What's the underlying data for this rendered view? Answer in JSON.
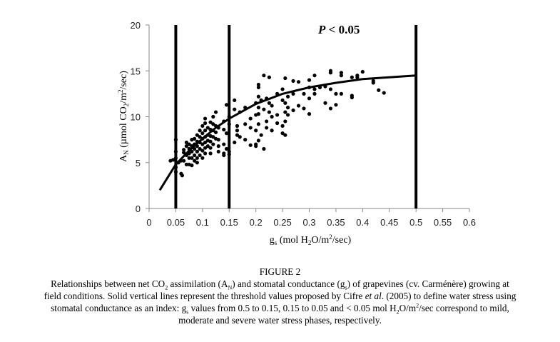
{
  "chart_data": {
    "type": "scatter",
    "title": "",
    "annotation": {
      "prefix": "P",
      "text": " < 0.05"
    },
    "xlabel": {
      "main": "g",
      "sub": "s",
      "rest1": " (mol H",
      "sub2": "2",
      "rest2": "O/m",
      "sup": "2",
      "rest3": "/sec)"
    },
    "ylabel": {
      "main": "A",
      "sub": "N",
      "rest1": " (µmol CO",
      "sub2": "2",
      "rest2": "/m",
      "sup": "2",
      "rest3": "/sec)"
    },
    "xlim": [
      0,
      0.6
    ],
    "ylim": [
      0,
      20
    ],
    "xticks": [
      "0",
      "0.05",
      "0.1",
      "0.15",
      "0.2",
      "0.25",
      "0.3",
      "0.35",
      "0.4",
      "0.45",
      "0.5",
      "0.55",
      "0.6"
    ],
    "yticks": [
      "0",
      "5",
      "10",
      "15",
      "20"
    ],
    "grid": false,
    "threshold_lines_x": [
      0.05,
      0.15,
      0.5
    ],
    "fit_curve": [
      [
        0.02,
        2.0
      ],
      [
        0.035,
        3.4
      ],
      [
        0.05,
        4.8
      ],
      [
        0.075,
        6.3
      ],
      [
        0.1,
        7.6
      ],
      [
        0.125,
        8.8
      ],
      [
        0.15,
        9.8
      ],
      [
        0.2,
        11.4
      ],
      [
        0.25,
        12.5
      ],
      [
        0.3,
        13.2
      ],
      [
        0.35,
        13.7
      ],
      [
        0.4,
        14.1
      ],
      [
        0.45,
        14.3
      ],
      [
        0.5,
        14.5
      ]
    ],
    "points": [
      [
        0.04,
        5.2
      ],
      [
        0.045,
        5.3
      ],
      [
        0.05,
        7.5
      ],
      [
        0.05,
        6.2
      ],
      [
        0.05,
        5.5
      ],
      [
        0.05,
        4.5
      ],
      [
        0.05,
        4.0
      ],
      [
        0.055,
        5.0
      ],
      [
        0.06,
        3.8
      ],
      [
        0.06,
        5.2
      ],
      [
        0.062,
        3.6
      ],
      [
        0.065,
        6.4
      ],
      [
        0.065,
        6.1
      ],
      [
        0.065,
        5.2
      ],
      [
        0.07,
        6.8
      ],
      [
        0.07,
        5.8
      ],
      [
        0.07,
        4.8
      ],
      [
        0.07,
        7.2
      ],
      [
        0.075,
        7.0
      ],
      [
        0.075,
        6.5
      ],
      [
        0.075,
        6.0
      ],
      [
        0.075,
        5.5
      ],
      [
        0.075,
        4.8
      ],
      [
        0.08,
        7.5
      ],
      [
        0.08,
        6.8
      ],
      [
        0.08,
        6.2
      ],
      [
        0.08,
        5.5
      ],
      [
        0.08,
        4.7
      ],
      [
        0.085,
        7.6
      ],
      [
        0.085,
        7.0
      ],
      [
        0.085,
        6.5
      ],
      [
        0.085,
        5.8
      ],
      [
        0.085,
        5.2
      ],
      [
        0.09,
        8.0
      ],
      [
        0.09,
        7.3
      ],
      [
        0.09,
        6.8
      ],
      [
        0.09,
        6.2
      ],
      [
        0.09,
        5.5
      ],
      [
        0.09,
        5.0
      ],
      [
        0.095,
        8.5
      ],
      [
        0.095,
        7.8
      ],
      [
        0.095,
        7.2
      ],
      [
        0.095,
        6.5
      ],
      [
        0.095,
        5.8
      ],
      [
        0.1,
        9.0
      ],
      [
        0.1,
        8.2
      ],
      [
        0.1,
        7.6
      ],
      [
        0.1,
        7.0
      ],
      [
        0.1,
        6.3
      ],
      [
        0.1,
        5.5
      ],
      [
        0.105,
        9.8
      ],
      [
        0.105,
        9.3
      ],
      [
        0.105,
        8.5
      ],
      [
        0.105,
        7.8
      ],
      [
        0.105,
        7.2
      ],
      [
        0.105,
        6.6
      ],
      [
        0.105,
        6.0
      ],
      [
        0.11,
        8.8
      ],
      [
        0.11,
        8.0
      ],
      [
        0.11,
        7.4
      ],
      [
        0.11,
        6.8
      ],
      [
        0.115,
        9.4
      ],
      [
        0.115,
        8.6
      ],
      [
        0.115,
        7.9
      ],
      [
        0.115,
        7.3
      ],
      [
        0.115,
        6.6
      ],
      [
        0.115,
        6.0
      ],
      [
        0.12,
        10.0
      ],
      [
        0.12,
        9.2
      ],
      [
        0.12,
        8.5
      ],
      [
        0.12,
        7.8
      ],
      [
        0.12,
        7.0
      ],
      [
        0.125,
        10.5
      ],
      [
        0.125,
        9.0
      ],
      [
        0.125,
        8.3
      ],
      [
        0.125,
        7.6
      ],
      [
        0.13,
        8.8
      ],
      [
        0.13,
        7.5
      ],
      [
        0.13,
        6.8
      ],
      [
        0.13,
        6.2
      ],
      [
        0.14,
        9.5
      ],
      [
        0.14,
        8.6
      ],
      [
        0.14,
        7.0
      ],
      [
        0.14,
        6.0
      ],
      [
        0.14,
        5.8
      ],
      [
        0.145,
        11.3
      ],
      [
        0.145,
        8.2
      ],
      [
        0.145,
        6.5
      ],
      [
        0.15,
        10.0
      ],
      [
        0.15,
        9.2
      ],
      [
        0.15,
        6.2
      ],
      [
        0.15,
        5.9
      ],
      [
        0.16,
        11.8
      ],
      [
        0.16,
        10.8
      ],
      [
        0.16,
        7.2
      ],
      [
        0.165,
        9.0
      ],
      [
        0.165,
        8.5
      ],
      [
        0.165,
        8.0
      ],
      [
        0.17,
        10.5
      ],
      [
        0.17,
        7.8
      ],
      [
        0.18,
        11.0
      ],
      [
        0.18,
        9.2
      ],
      [
        0.18,
        7.5
      ],
      [
        0.19,
        9.8
      ],
      [
        0.19,
        8.8
      ],
      [
        0.19,
        6.9
      ],
      [
        0.2,
        11.5
      ],
      [
        0.2,
        10.2
      ],
      [
        0.2,
        8.5
      ],
      [
        0.2,
        7.0
      ],
      [
        0.2,
        6.8
      ],
      [
        0.205,
        13.5
      ],
      [
        0.205,
        13.2
      ],
      [
        0.205,
        12.2
      ],
      [
        0.205,
        11.0
      ],
      [
        0.205,
        10.3
      ],
      [
        0.205,
        9.2
      ],
      [
        0.205,
        7.4
      ],
      [
        0.21,
        11.8
      ],
      [
        0.21,
        8.0
      ],
      [
        0.215,
        14.5
      ],
      [
        0.215,
        10.8
      ],
      [
        0.215,
        6.5
      ],
      [
        0.22,
        12.0
      ],
      [
        0.22,
        9.5
      ],
      [
        0.22,
        8.8
      ],
      [
        0.225,
        14.3
      ],
      [
        0.225,
        11.5
      ],
      [
        0.225,
        10.5
      ],
      [
        0.23,
        11.2
      ],
      [
        0.23,
        10.0
      ],
      [
        0.23,
        8.5
      ],
      [
        0.24,
        12.5
      ],
      [
        0.24,
        10.2
      ],
      [
        0.24,
        9.3
      ],
      [
        0.25,
        13.0
      ],
      [
        0.25,
        11.8
      ],
      [
        0.25,
        9.0
      ],
      [
        0.25,
        8.2
      ],
      [
        0.255,
        14.2
      ],
      [
        0.255,
        11.5
      ],
      [
        0.255,
        10.5
      ],
      [
        0.255,
        9.5
      ],
      [
        0.255,
        8.0
      ],
      [
        0.26,
        12.2
      ],
      [
        0.26,
        11.0
      ],
      [
        0.26,
        10.2
      ],
      [
        0.27,
        13.9
      ],
      [
        0.27,
        12.5
      ],
      [
        0.27,
        10.7
      ],
      [
        0.28,
        13.8
      ],
      [
        0.28,
        11.2
      ],
      [
        0.29,
        12.5
      ],
      [
        0.29,
        10.9
      ],
      [
        0.3,
        14.0
      ],
      [
        0.3,
        13.2
      ],
      [
        0.3,
        12.0
      ],
      [
        0.3,
        10.3
      ],
      [
        0.31,
        14.5
      ],
      [
        0.31,
        13.0
      ],
      [
        0.31,
        12.5
      ],
      [
        0.32,
        13.2
      ],
      [
        0.33,
        13.3
      ],
      [
        0.33,
        11.5
      ],
      [
        0.34,
        15.0
      ],
      [
        0.34,
        14.8
      ],
      [
        0.34,
        13.0
      ],
      [
        0.34,
        10.9
      ],
      [
        0.35,
        12.5
      ],
      [
        0.35,
        11.3
      ],
      [
        0.36,
        14.8
      ],
      [
        0.36,
        14.5
      ],
      [
        0.36,
        12.5
      ],
      [
        0.38,
        14.3
      ],
      [
        0.38,
        12.3
      ],
      [
        0.38,
        12.1
      ],
      [
        0.39,
        14.5
      ],
      [
        0.39,
        14.3
      ],
      [
        0.4,
        14.9
      ],
      [
        0.42,
        13.9
      ],
      [
        0.42,
        13.7
      ],
      [
        0.43,
        12.9
      ],
      [
        0.44,
        12.6
      ]
    ]
  },
  "caption": {
    "figure_label": "FIGURE 2",
    "lines": [
      [
        {
          "t": "Relationships between net CO"
        },
        {
          "t": "2",
          "s": "sub"
        },
        {
          "t": " assimilation (A"
        },
        {
          "t": "N",
          "s": "sub"
        },
        {
          "t": ") and stomatal conductance (g"
        },
        {
          "t": "s",
          "s": "sub"
        },
        {
          "t": ") of grapevines (cv. Carménère) growing at"
        }
      ],
      [
        {
          "t": "field conditions. Solid vertical lines represent the threshold values proposed by Cifre "
        },
        {
          "t": "et al",
          "s": "i"
        },
        {
          "t": ". (2005) to define water stress using"
        }
      ],
      [
        {
          "t": "stomatal conductance as an index: g"
        },
        {
          "t": "s",
          "s": "sub"
        },
        {
          "t": " values from 0.5 to 0.15, 0.15 to 0.05 and < 0.05 mol H"
        },
        {
          "t": "2",
          "s": "sub"
        },
        {
          "t": "O/m"
        },
        {
          "t": "2",
          "s": "sup"
        },
        {
          "t": "/sec correspond to mild,"
        }
      ],
      [
        {
          "t": "moderate and severe water stress phases, respectively."
        }
      ]
    ]
  }
}
